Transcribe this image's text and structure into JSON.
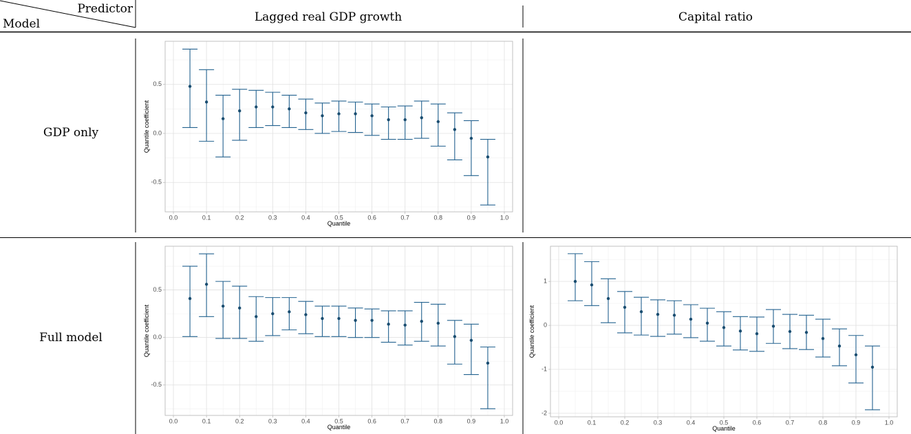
{
  "table": {
    "corner": {
      "column": "Predictor",
      "row": "Model"
    },
    "columns": [
      "Lagged real GDP growth",
      "Capital ratio"
    ],
    "rows": [
      "GDP only",
      "Full model"
    ]
  },
  "chart_data": [
    {
      "type": "pointrange",
      "xlabel": "Quantile",
      "ylabel": "Quantile coefficient",
      "color": "#23628f",
      "grid": true,
      "x": [
        0.05,
        0.1,
        0.15,
        0.2,
        0.25,
        0.3,
        0.35,
        0.4,
        0.45,
        0.5,
        0.55,
        0.6,
        0.65,
        0.7,
        0.75,
        0.8,
        0.85,
        0.9,
        0.95
      ],
      "values": [
        0.48,
        0.32,
        0.15,
        0.23,
        0.27,
        0.27,
        0.25,
        0.21,
        0.18,
        0.2,
        0.2,
        0.18,
        0.14,
        0.14,
        0.16,
        0.12,
        0.04,
        -0.05,
        -0.24
      ],
      "lower": [
        0.06,
        -0.08,
        -0.24,
        -0.07,
        0.06,
        0.08,
        0.06,
        0.04,
        0.0,
        0.02,
        0.01,
        -0.02,
        -0.06,
        -0.06,
        -0.05,
        -0.13,
        -0.27,
        -0.43,
        -0.73
      ],
      "upper": [
        0.86,
        0.65,
        0.39,
        0.45,
        0.44,
        0.42,
        0.39,
        0.35,
        0.31,
        0.33,
        0.32,
        0.3,
        0.27,
        0.28,
        0.33,
        0.3,
        0.21,
        0.13,
        -0.06
      ],
      "xlim": [
        -0.025,
        1.025
      ],
      "ylim": [
        -0.8,
        0.94
      ],
      "xticks": [
        {
          "value": 0,
          "label": "0.0"
        },
        0.1,
        0.2,
        0.3,
        0.4,
        0.5,
        0.6,
        0.7,
        0.8,
        0.9,
        {
          "value": 1,
          "label": "1.0"
        }
      ],
      "yticks": [
        -0.5,
        {
          "value": 0,
          "label": "0.0"
        },
        0.5
      ]
    },
    {
      "type": "pointrange",
      "xlabel": "Quantile",
      "ylabel": "Quantile coefficient",
      "color": "#23628f",
      "grid": true,
      "x": [
        0.05,
        0.1,
        0.15,
        0.2,
        0.25,
        0.3,
        0.35,
        0.4,
        0.45,
        0.5,
        0.55,
        0.6,
        0.65,
        0.7,
        0.75,
        0.8,
        0.85,
        0.9,
        0.95
      ],
      "values": [
        0.41,
        0.56,
        0.33,
        0.31,
        0.22,
        0.25,
        0.27,
        0.24,
        0.2,
        0.2,
        0.18,
        0.18,
        0.14,
        0.13,
        0.17,
        0.15,
        0.01,
        -0.03,
        -0.27
      ],
      "lower": [
        0.01,
        0.22,
        -0.01,
        -0.01,
        -0.04,
        0.02,
        0.08,
        0.04,
        0.01,
        0.01,
        0.0,
        0.0,
        -0.05,
        -0.08,
        -0.04,
        -0.09,
        -0.28,
        -0.39,
        -0.75
      ],
      "upper": [
        0.75,
        0.88,
        0.59,
        0.54,
        0.43,
        0.42,
        0.42,
        0.38,
        0.33,
        0.33,
        0.31,
        0.3,
        0.28,
        0.28,
        0.37,
        0.35,
        0.18,
        0.14,
        -0.1
      ],
      "xlim": [
        -0.025,
        1.025
      ],
      "ylim": [
        -0.82,
        0.96
      ],
      "xticks": [
        {
          "value": 0,
          "label": "0.0"
        },
        0.1,
        0.2,
        0.3,
        0.4,
        0.5,
        0.6,
        0.7,
        0.8,
        0.9,
        {
          "value": 1,
          "label": "1.0"
        }
      ],
      "yticks": [
        -0.5,
        {
          "value": 0,
          "label": "0.0"
        },
        0.5
      ]
    },
    {
      "type": "pointrange",
      "xlabel": "Quantile",
      "ylabel": "Quantile coefficient",
      "color": "#23628f",
      "grid": true,
      "x": [
        0.05,
        0.1,
        0.15,
        0.2,
        0.25,
        0.3,
        0.35,
        0.4,
        0.45,
        0.5,
        0.55,
        0.6,
        0.65,
        0.7,
        0.75,
        0.8,
        0.85,
        0.9,
        0.95
      ],
      "values": [
        1.0,
        0.92,
        0.61,
        0.41,
        0.31,
        0.25,
        0.23,
        0.14,
        0.05,
        -0.05,
        -0.13,
        -0.19,
        -0.02,
        -0.14,
        -0.16,
        -0.3,
        -0.47,
        -0.67,
        -0.95
      ],
      "lower": [
        0.56,
        0.45,
        0.06,
        -0.17,
        -0.22,
        -0.25,
        -0.2,
        -0.28,
        -0.36,
        -0.47,
        -0.56,
        -0.59,
        -0.41,
        -0.53,
        -0.55,
        -0.72,
        -0.92,
        -1.31,
        -1.92
      ],
      "upper": [
        1.63,
        1.45,
        1.06,
        0.77,
        0.64,
        0.58,
        0.56,
        0.47,
        0.39,
        0.31,
        0.2,
        0.19,
        0.36,
        0.25,
        0.23,
        0.14,
        -0.08,
        -0.23,
        -0.47
      ],
      "xlim": [
        -0.025,
        1.025
      ],
      "ylim": [
        -2.08,
        1.8
      ],
      "xticks": [
        {
          "value": 0,
          "label": "0.0"
        },
        0.1,
        0.2,
        0.3,
        0.4,
        0.5,
        0.6,
        0.7,
        0.8,
        0.9,
        {
          "value": 1,
          "label": "1.0"
        }
      ],
      "yticks": [
        -2,
        -1,
        0,
        1
      ]
    }
  ]
}
